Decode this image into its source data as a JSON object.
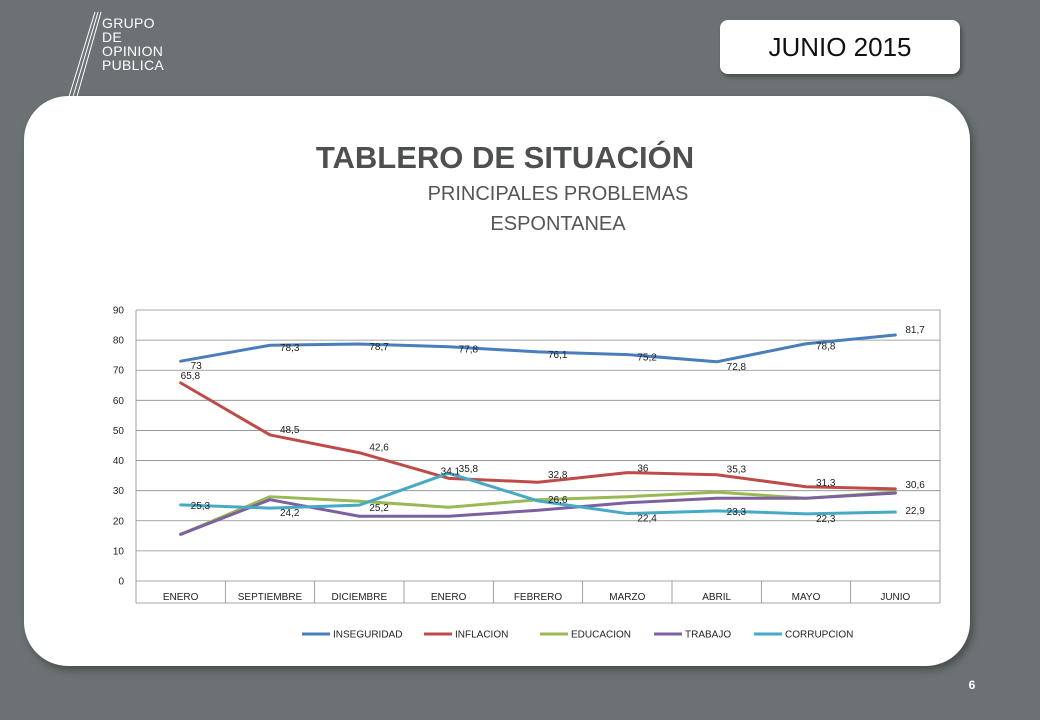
{
  "logo": {
    "lines": [
      "GRUPO",
      "DE",
      "OPINION",
      "PUBLICA"
    ]
  },
  "header": {
    "date_label": "JUNIO 2015"
  },
  "title": "TABLERO DE SITUACIÓN",
  "subtitle_1": "PRINCIPALES PROBLEMAS",
  "subtitle_2": "ESPONTANEA",
  "page_number": "6",
  "colors": {
    "background": "#6c7273",
    "card": "#ffffff"
  },
  "chart_data": {
    "type": "line",
    "categories": [
      "ENERO",
      "SEPTIEMBRE",
      "DICIEMBRE",
      "ENERO",
      "FEBRERO",
      "MARZO",
      "ABRIL",
      "MAYO",
      "JUNIO"
    ],
    "ylim": [
      0,
      90
    ],
    "yticks": [
      "0",
      "10",
      "20",
      "30",
      "40",
      "50",
      "60",
      "70",
      "80",
      "90"
    ],
    "grid": true,
    "legend_position": "bottom",
    "series": [
      {
        "name": "INSEGURIDAD",
        "color": "#4a7ebb",
        "values": [
          73,
          78.3,
          78.7,
          77.8,
          76.1,
          75.2,
          72.8,
          78.8,
          81.7
        ],
        "labels": [
          "73",
          "78,3",
          "78,7",
          "77,8",
          "76,1",
          "75,2",
          "72,8",
          "78,8",
          "81,7"
        ]
      },
      {
        "name": "INFLACION",
        "color": "#be4b48",
        "values": [
          65.8,
          48.5,
          42.6,
          34.1,
          32.8,
          36,
          35.3,
          31.3,
          30.6
        ],
        "labels": [
          "65,8",
          "48,5",
          "42,6",
          "34,1",
          "32,8",
          "36",
          "35,3",
          "31,3",
          "30,6"
        ]
      },
      {
        "name": "EDUCACION",
        "color": "#98b954",
        "values": [
          15.5,
          28,
          26.5,
          24.5,
          27,
          28,
          29.5,
          27.5,
          29.5
        ],
        "labels": []
      },
      {
        "name": "TRABAJO",
        "color": "#7d60a0",
        "values": [
          15.5,
          27,
          21.5,
          21.5,
          23.5,
          26,
          27.5,
          27.5,
          29.2
        ],
        "labels": []
      },
      {
        "name": "CORRUPCION",
        "color": "#46aac5",
        "values": [
          25.3,
          24.2,
          25.2,
          35.8,
          26.6,
          22.4,
          23.3,
          22.3,
          22.9
        ],
        "labels": [
          "25,3",
          "24,2",
          "25,2",
          "35,8",
          "26,6",
          "22,4",
          "23,3",
          "22,3",
          "22,9"
        ]
      }
    ]
  }
}
